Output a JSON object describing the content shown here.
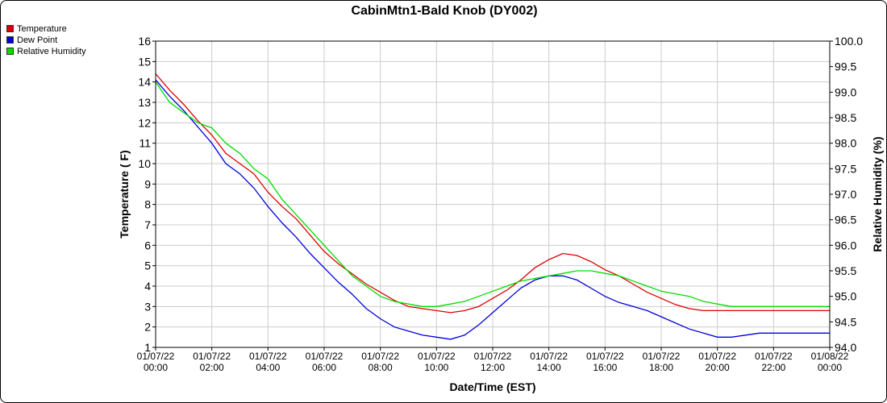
{
  "chart_data": {
    "type": "line",
    "title": "CabinMtn1-Bald Knob (DY002)",
    "xlabel": "Date/Time (EST)",
    "ylabel": "Temperature ( F)",
    "y2label": "Relative Humidity (%)",
    "ylim": [
      1,
      16
    ],
    "y2lim": [
      94.0,
      100.0
    ],
    "xlim_hours": [
      0,
      24
    ],
    "grid": true,
    "legend_position": "top-left",
    "y_ticks": [
      "1",
      "2",
      "3",
      "4",
      "5",
      "6",
      "7",
      "8",
      "9",
      "10",
      "11",
      "12",
      "13",
      "14",
      "15",
      "16"
    ],
    "y2_ticks": [
      "94.0",
      "94.5",
      "95.0",
      "95.5",
      "96.0",
      "96.5",
      "97.0",
      "97.5",
      "98.0",
      "98.5",
      "99.0",
      "99.5",
      "100.0"
    ],
    "x_ticks": [
      {
        "date": "01/07/22",
        "time": "00:00"
      },
      {
        "date": "01/07/22",
        "time": "02:00"
      },
      {
        "date": "01/07/22",
        "time": "04:00"
      },
      {
        "date": "01/07/22",
        "time": "06:00"
      },
      {
        "date": "01/07/22",
        "time": "08:00"
      },
      {
        "date": "01/07/22",
        "time": "10:00"
      },
      {
        "date": "01/07/22",
        "time": "12:00"
      },
      {
        "date": "01/07/22",
        "time": "14:00"
      },
      {
        "date": "01/07/22",
        "time": "16:00"
      },
      {
        "date": "01/07/22",
        "time": "18:00"
      },
      {
        "date": "01/07/22",
        "time": "20:00"
      },
      {
        "date": "01/07/22",
        "time": "22:00"
      },
      {
        "date": "01/08/22",
        "time": "00:00"
      }
    ],
    "series": [
      {
        "name": "Temperature",
        "color": "#dd0000",
        "axis": "left",
        "points": [
          [
            0,
            14.4
          ],
          [
            0.5,
            13.6
          ],
          [
            1,
            12.9
          ],
          [
            1.5,
            12.1
          ],
          [
            2,
            11.4
          ],
          [
            2.5,
            10.5
          ],
          [
            3,
            10.0
          ],
          [
            3.5,
            9.5
          ],
          [
            4,
            8.6
          ],
          [
            4.5,
            7.9
          ],
          [
            5,
            7.3
          ],
          [
            5.5,
            6.5
          ],
          [
            6,
            5.7
          ],
          [
            6.5,
            5.1
          ],
          [
            7,
            4.6
          ],
          [
            7.5,
            4.1
          ],
          [
            8,
            3.7
          ],
          [
            8.5,
            3.3
          ],
          [
            9,
            3.0
          ],
          [
            9.5,
            2.9
          ],
          [
            10,
            2.8
          ],
          [
            10.5,
            2.7
          ],
          [
            11,
            2.8
          ],
          [
            11.5,
            3.0
          ],
          [
            12,
            3.4
          ],
          [
            12.5,
            3.8
          ],
          [
            13,
            4.3
          ],
          [
            13.5,
            4.9
          ],
          [
            14,
            5.3
          ],
          [
            14.5,
            5.6
          ],
          [
            15,
            5.5
          ],
          [
            15.5,
            5.2
          ],
          [
            16,
            4.8
          ],
          [
            16.5,
            4.5
          ],
          [
            17,
            4.1
          ],
          [
            17.5,
            3.7
          ],
          [
            18,
            3.4
          ],
          [
            18.5,
            3.1
          ],
          [
            19,
            2.9
          ],
          [
            19.5,
            2.8
          ],
          [
            20,
            2.8
          ],
          [
            20.5,
            2.8
          ],
          [
            21,
            2.8
          ],
          [
            21.5,
            2.8
          ],
          [
            22,
            2.8
          ],
          [
            22.5,
            2.8
          ],
          [
            23,
            2.8
          ],
          [
            23.5,
            2.8
          ],
          [
            24,
            2.8
          ]
        ]
      },
      {
        "name": "Dew Point",
        "color": "#0000dd",
        "axis": "left",
        "points": [
          [
            0,
            14.1
          ],
          [
            0.5,
            13.3
          ],
          [
            1,
            12.6
          ],
          [
            1.5,
            11.8
          ],
          [
            2,
            11.0
          ],
          [
            2.5,
            10.0
          ],
          [
            3,
            9.5
          ],
          [
            3.5,
            8.8
          ],
          [
            4,
            7.9
          ],
          [
            4.5,
            7.1
          ],
          [
            5,
            6.4
          ],
          [
            5.5,
            5.6
          ],
          [
            6,
            4.9
          ],
          [
            6.5,
            4.2
          ],
          [
            7,
            3.6
          ],
          [
            7.5,
            2.9
          ],
          [
            8,
            2.4
          ],
          [
            8.5,
            2.0
          ],
          [
            9,
            1.8
          ],
          [
            9.5,
            1.6
          ],
          [
            10,
            1.5
          ],
          [
            10.5,
            1.4
          ],
          [
            11,
            1.6
          ],
          [
            11.5,
            2.1
          ],
          [
            12,
            2.7
          ],
          [
            12.5,
            3.3
          ],
          [
            13,
            3.9
          ],
          [
            13.5,
            4.3
          ],
          [
            14,
            4.5
          ],
          [
            14.5,
            4.5
          ],
          [
            15,
            4.3
          ],
          [
            15.5,
            3.9
          ],
          [
            16,
            3.5
          ],
          [
            16.5,
            3.2
          ],
          [
            17,
            3.0
          ],
          [
            17.5,
            2.8
          ],
          [
            18,
            2.5
          ],
          [
            18.5,
            2.2
          ],
          [
            19,
            1.9
          ],
          [
            19.5,
            1.7
          ],
          [
            20,
            1.5
          ],
          [
            20.5,
            1.5
          ],
          [
            21,
            1.6
          ],
          [
            21.5,
            1.7
          ],
          [
            22,
            1.7
          ],
          [
            22.5,
            1.7
          ],
          [
            23,
            1.7
          ],
          [
            23.5,
            1.7
          ],
          [
            24,
            1.7
          ]
        ]
      },
      {
        "name": "Relative Humidity",
        "color": "#00dd00",
        "axis": "right",
        "points": [
          [
            0,
            99.2
          ],
          [
            0.5,
            98.8
          ],
          [
            1,
            98.6
          ],
          [
            1.5,
            98.4
          ],
          [
            2,
            98.3
          ],
          [
            2.5,
            98.0
          ],
          [
            3,
            97.8
          ],
          [
            3.5,
            97.5
          ],
          [
            4,
            97.3
          ],
          [
            4.5,
            96.9
          ],
          [
            5,
            96.6
          ],
          [
            5.5,
            96.3
          ],
          [
            6,
            96.0
          ],
          [
            6.5,
            95.7
          ],
          [
            7,
            95.4
          ],
          [
            7.5,
            95.2
          ],
          [
            8,
            95.0
          ],
          [
            8.5,
            94.9
          ],
          [
            9,
            94.85
          ],
          [
            9.5,
            94.8
          ],
          [
            10,
            94.8
          ],
          [
            10.5,
            94.85
          ],
          [
            11,
            94.9
          ],
          [
            11.5,
            95.0
          ],
          [
            12,
            95.1
          ],
          [
            12.5,
            95.2
          ],
          [
            13,
            95.3
          ],
          [
            13.5,
            95.35
          ],
          [
            14,
            95.4
          ],
          [
            14.5,
            95.45
          ],
          [
            15,
            95.5
          ],
          [
            15.5,
            95.5
          ],
          [
            16,
            95.45
          ],
          [
            16.5,
            95.4
          ],
          [
            17,
            95.3
          ],
          [
            17.5,
            95.2
          ],
          [
            18,
            95.1
          ],
          [
            18.5,
            95.05
          ],
          [
            19,
            95.0
          ],
          [
            19.5,
            94.9
          ],
          [
            20,
            94.85
          ],
          [
            20.5,
            94.8
          ],
          [
            21,
            94.8
          ],
          [
            21.5,
            94.8
          ],
          [
            22,
            94.8
          ],
          [
            22.5,
            94.8
          ],
          [
            23,
            94.8
          ],
          [
            23.5,
            94.8
          ],
          [
            24,
            94.8
          ]
        ]
      }
    ]
  }
}
